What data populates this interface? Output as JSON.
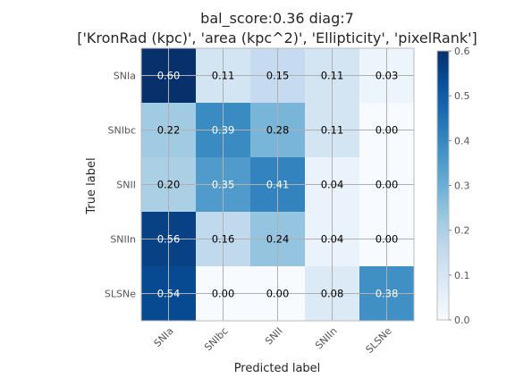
{
  "chart_data": {
    "type": "heatmap",
    "title": "bal_score:0.36 diag:7",
    "subtitle": "['KronRad (kpc)', 'area (kpc^2)', 'Ellipticity', 'pixelRank']",
    "xlabel": "Predicted label",
    "ylabel": "True label",
    "x_categories": [
      "SNIa",
      "SNIbc",
      "SNII",
      "SNIIn",
      "SLSNe"
    ],
    "y_categories": [
      "SNIa",
      "SNIbc",
      "SNII",
      "SNIIn",
      "SLSNe"
    ],
    "values": [
      [
        0.6,
        0.11,
        0.15,
        0.11,
        0.03
      ],
      [
        0.22,
        0.39,
        0.28,
        0.11,
        0.0
      ],
      [
        0.2,
        0.35,
        0.41,
        0.04,
        0.0
      ],
      [
        0.56,
        0.16,
        0.24,
        0.04,
        0.0
      ],
      [
        0.54,
        0.0,
        0.0,
        0.08,
        0.38
      ]
    ],
    "labels": [
      [
        "0.60",
        "0.11",
        "0.15",
        "0.11",
        "0.03"
      ],
      [
        "0.22",
        "0.39",
        "0.28",
        "0.11",
        "0.00"
      ],
      [
        "0.20",
        "0.35",
        "0.41",
        "0.04",
        "0.00"
      ],
      [
        "0.56",
        "0.16",
        "0.24",
        "0.04",
        "0.00"
      ],
      [
        "0.54",
        "0.00",
        "0.00",
        "0.08",
        "0.38"
      ]
    ],
    "colorscale": "Blues",
    "vmin": 0.0,
    "vmax": 0.6,
    "colorbar_ticks": [
      "0.0",
      "0.1",
      "0.2",
      "0.3",
      "0.4",
      "0.5",
      "0.6"
    ],
    "grid": true
  }
}
